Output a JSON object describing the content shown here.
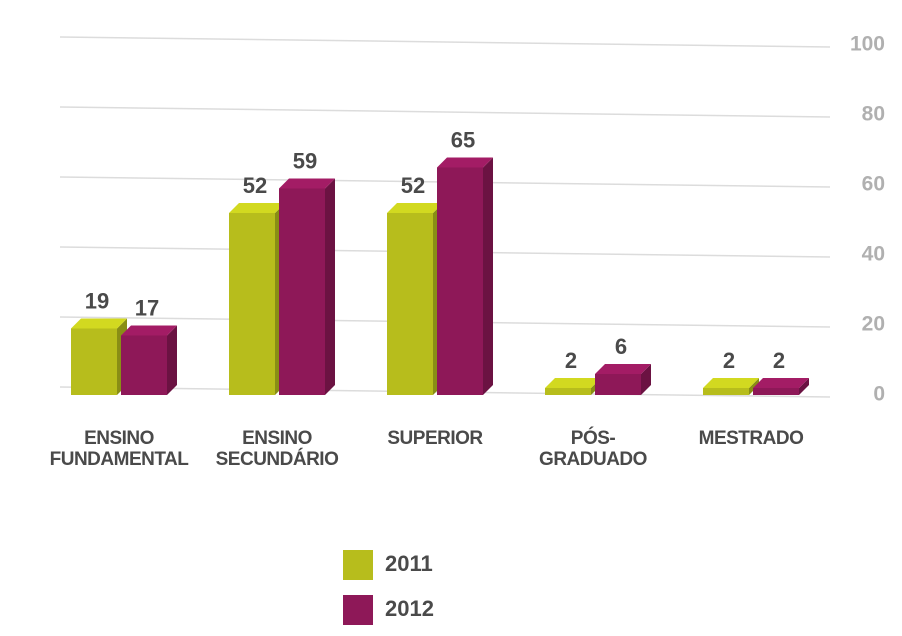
{
  "chart_data": {
    "type": "bar",
    "categories": [
      "ENSINO FUNDAMENTAL",
      "ENSINO SECUNDÁRIO",
      "SUPERIOR",
      "PÓS-GRADUADO",
      "MESTRADO"
    ],
    "series": [
      {
        "name": "2011",
        "color": "#b7bd1c",
        "values": [
          19,
          52,
          52,
          2,
          2
        ]
      },
      {
        "name": "2012",
        "color": "#8e1858",
        "values": [
          17,
          59,
          65,
          6,
          2
        ]
      }
    ],
    "ylim": [
      0,
      100
    ],
    "yticks": [
      0,
      20,
      40,
      60,
      80,
      100
    ],
    "grid": true,
    "legend": "bottom"
  }
}
